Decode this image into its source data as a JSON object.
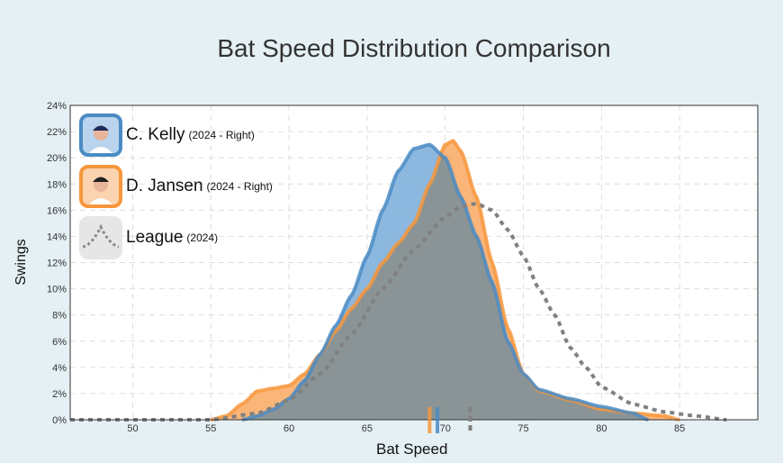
{
  "chart_data": {
    "type": "area",
    "title": "Bat Speed Distribution Comparison",
    "xlabel": "Bat Speed",
    "ylabel": "Swings",
    "xlim": [
      46,
      90
    ],
    "ylim": [
      0,
      24
    ],
    "xticks": [
      50,
      55,
      60,
      65,
      70,
      75,
      80,
      85
    ],
    "yticks": [
      0,
      2,
      4,
      6,
      8,
      10,
      12,
      14,
      16,
      18,
      20,
      22,
      24
    ],
    "ytick_suffix": "%",
    "grid": true,
    "legend_placement": "top-left",
    "series": [
      {
        "name": "C. Kelly",
        "sub": "(2024 - Right)",
        "color": "#4a8bc4",
        "fill": "#7fb0dc",
        "mean": 69.5,
        "points": [
          [
            57,
            0
          ],
          [
            58,
            0.3
          ],
          [
            59,
            0.8
          ],
          [
            60,
            1.6
          ],
          [
            61,
            3
          ],
          [
            62,
            5
          ],
          [
            63,
            7.2
          ],
          [
            64,
            9.5
          ],
          [
            65,
            12.5
          ],
          [
            66,
            16
          ],
          [
            67,
            19
          ],
          [
            68,
            20.7
          ],
          [
            69,
            21
          ],
          [
            70,
            20
          ],
          [
            71,
            17
          ],
          [
            72,
            14
          ],
          [
            73,
            10.5
          ],
          [
            74,
            6
          ],
          [
            75,
            3.5
          ],
          [
            76,
            2.3
          ],
          [
            78,
            1.6
          ],
          [
            80,
            1
          ],
          [
            82,
            0.5
          ],
          [
            83,
            0
          ]
        ]
      },
      {
        "name": "D. Jansen",
        "sub": "(2024 - Right)",
        "color": "#f7963c",
        "fill": "#f9ad6a",
        "mean": 69.0,
        "points": [
          [
            55,
            0
          ],
          [
            56,
            0.3
          ],
          [
            57,
            1.2
          ],
          [
            58,
            2.2
          ],
          [
            59,
            2.4
          ],
          [
            60,
            2.6
          ],
          [
            61,
            3.5
          ],
          [
            62,
            5
          ],
          [
            63,
            6.8
          ],
          [
            64,
            8.5
          ],
          [
            65,
            10
          ],
          [
            66,
            12
          ],
          [
            67,
            13.5
          ],
          [
            68,
            15
          ],
          [
            69,
            18
          ],
          [
            70,
            21
          ],
          [
            70.5,
            21.3
          ],
          [
            71,
            20.5
          ],
          [
            72,
            17
          ],
          [
            73,
            12
          ],
          [
            74,
            7
          ],
          [
            75,
            3.5
          ],
          [
            76,
            2.2
          ],
          [
            78,
            1.5
          ],
          [
            80,
            0.8
          ],
          [
            82,
            0.5
          ],
          [
            84,
            0.3
          ],
          [
            85,
            0
          ]
        ]
      },
      {
        "name": "League",
        "sub": "(2024)",
        "color": "#808080",
        "mean": 71.6,
        "points": [
          [
            46,
            0
          ],
          [
            55,
            0
          ],
          [
            58,
            0.5
          ],
          [
            60,
            1.5
          ],
          [
            62,
            3.5
          ],
          [
            64,
            6.5
          ],
          [
            66,
            10
          ],
          [
            68,
            13
          ],
          [
            70,
            15.5
          ],
          [
            71,
            16.3
          ],
          [
            72,
            16.5
          ],
          [
            73,
            16
          ],
          [
            74,
            14.5
          ],
          [
            75,
            12.5
          ],
          [
            76,
            10
          ],
          [
            77,
            8
          ],
          [
            78,
            5.5
          ],
          [
            79,
            4
          ],
          [
            80,
            2.5
          ],
          [
            82,
            1.2
          ],
          [
            84,
            0.6
          ],
          [
            86,
            0.3
          ],
          [
            88,
            0
          ]
        ]
      }
    ]
  }
}
